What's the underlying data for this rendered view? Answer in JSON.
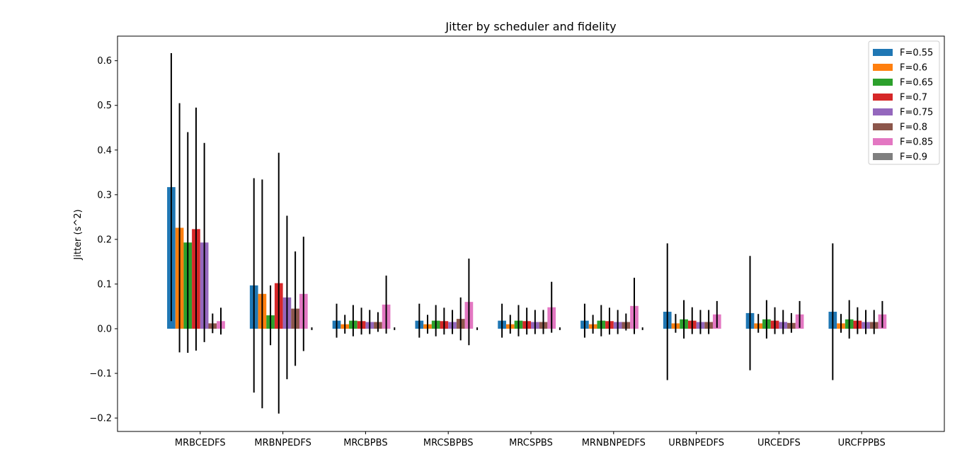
{
  "chart_data": {
    "type": "bar",
    "title": "Jitter by scheduler and fidelity",
    "xlabel": "",
    "ylabel": "Jitter (s^2)",
    "ylim": [
      -0.23,
      0.655
    ],
    "yticks": [
      -0.2,
      -0.1,
      0.0,
      0.1,
      0.2,
      0.3,
      0.4,
      0.5,
      0.6
    ],
    "ytick_labels": [
      "−0.2",
      "−0.1",
      "0.0",
      "0.1",
      "0.2",
      "0.3",
      "0.4",
      "0.5",
      "0.6"
    ],
    "grid": false,
    "legend_position": "top-right",
    "categories": [
      "MRBCEDFS",
      "MRBNPEDFS",
      "MRCBPBS",
      "MRCSBPBS",
      "MRCSPBS",
      "MRNBNPEDFS",
      "URBNPEDFS",
      "URCEDFS",
      "URCFPPBS"
    ],
    "series": [
      {
        "name": "F=0.55",
        "color": "#1f77b4",
        "values": [
          0.317,
          0.097,
          0.018,
          0.018,
          0.018,
          0.018,
          0.038,
          0.035,
          0.038
        ],
        "errors": [
          0.3,
          0.24,
          0.038,
          0.038,
          0.038,
          0.038,
          0.153,
          0.128,
          0.153
        ]
      },
      {
        "name": "F=0.6",
        "color": "#ff7f0e",
        "values": [
          0.226,
          0.078,
          0.01,
          0.01,
          0.01,
          0.01,
          0.012,
          0.012,
          0.012
        ],
        "errors": [
          0.279,
          0.256,
          0.021,
          0.021,
          0.021,
          0.021,
          0.021,
          0.021,
          0.021
        ]
      },
      {
        "name": "F=0.65",
        "color": "#2ca02c",
        "values": [
          0.193,
          0.03,
          0.018,
          0.018,
          0.018,
          0.018,
          0.021,
          0.021,
          0.021
        ],
        "errors": [
          0.247,
          0.067,
          0.035,
          0.035,
          0.035,
          0.035,
          0.043,
          0.043,
          0.043
        ]
      },
      {
        "name": "F=0.7",
        "color": "#d62728",
        "values": [
          0.223,
          0.102,
          0.017,
          0.017,
          0.017,
          0.017,
          0.018,
          0.018,
          0.018
        ],
        "errors": [
          0.272,
          0.292,
          0.03,
          0.03,
          0.03,
          0.03,
          0.03,
          0.03,
          0.03
        ]
      },
      {
        "name": "F=0.75",
        "color": "#9467bd",
        "values": [
          0.193,
          0.07,
          0.015,
          0.015,
          0.015,
          0.015,
          0.015,
          0.015,
          0.015
        ],
        "errors": [
          0.223,
          0.183,
          0.027,
          0.027,
          0.027,
          0.027,
          0.027,
          0.027,
          0.027
        ]
      },
      {
        "name": "F=0.8",
        "color": "#8c564b",
        "values": [
          0.012,
          0.045,
          0.015,
          0.022,
          0.015,
          0.015,
          0.015,
          0.013,
          0.015
        ],
        "errors": [
          0.022,
          0.128,
          0.022,
          0.048,
          0.027,
          0.019,
          0.027,
          0.022,
          0.027
        ]
      },
      {
        "name": "F=0.85",
        "color": "#e377c2",
        "values": [
          0.017,
          0.078,
          0.054,
          0.06,
          0.048,
          0.051,
          0.032,
          0.032,
          0.032
        ],
        "errors": [
          0.03,
          0.128,
          0.065,
          0.097,
          0.057,
          0.063,
          0.03,
          0.03,
          0.03
        ]
      },
      {
        "name": "F=0.9",
        "color": "#7f7f7f",
        "values": [
          0.0,
          0.0,
          0.0,
          0.0,
          0.0,
          0.0,
          0.0,
          0.0,
          0.0
        ],
        "errors": [
          0.0,
          0.003,
          0.003,
          0.003,
          0.003,
          0.003,
          0.0,
          0.0,
          0.0
        ]
      }
    ]
  }
}
